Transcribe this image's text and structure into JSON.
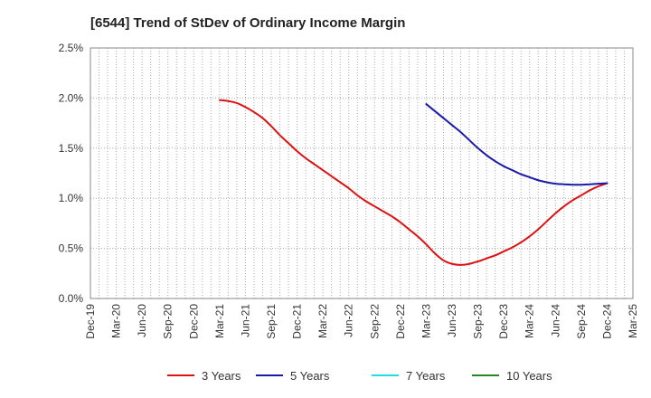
{
  "chart_data": {
    "type": "line",
    "title": "[6544]  Trend of StDev of Ordinary Income Margin",
    "xlabel": "",
    "ylabel": "",
    "x_ticks": [
      "Dec-19",
      "Mar-20",
      "Jun-20",
      "Sep-20",
      "Dec-20",
      "Mar-21",
      "Jun-21",
      "Sep-21",
      "Dec-21",
      "Mar-22",
      "Jun-22",
      "Sep-22",
      "Dec-22",
      "Mar-23",
      "Jun-23",
      "Sep-23",
      "Dec-23",
      "Mar-24",
      "Jun-24",
      "Sep-24",
      "Dec-24",
      "Mar-25"
    ],
    "y_ticks": [
      "0.0%",
      "0.5%",
      "1.0%",
      "1.5%",
      "2.0%",
      "2.5%"
    ],
    "ylim": [
      0,
      2.5
    ],
    "y_unit": "%",
    "grid": {
      "x": true,
      "y": true,
      "style": "dotted"
    },
    "legend_position": "bottom",
    "series": [
      {
        "name": "3 Years",
        "color": "#dd1111",
        "points": [
          [
            "Mar-21",
            1.98
          ],
          [
            "Apr-21",
            1.97
          ],
          [
            "May-21",
            1.95
          ],
          [
            "Jun-21",
            1.91
          ],
          [
            "Jul-21",
            1.86
          ],
          [
            "Aug-21",
            1.8
          ],
          [
            "Sep-21",
            1.72
          ],
          [
            "Oct-21",
            1.63
          ],
          [
            "Nov-21",
            1.55
          ],
          [
            "Dec-21",
            1.47
          ],
          [
            "Jan-22",
            1.4
          ],
          [
            "Feb-22",
            1.34
          ],
          [
            "Mar-22",
            1.28
          ],
          [
            "Apr-22",
            1.22
          ],
          [
            "May-22",
            1.16
          ],
          [
            "Jun-22",
            1.1
          ],
          [
            "Jul-22",
            1.03
          ],
          [
            "Aug-22",
            0.97
          ],
          [
            "Sep-22",
            0.92
          ],
          [
            "Oct-22",
            0.87
          ],
          [
            "Nov-22",
            0.82
          ],
          [
            "Dec-22",
            0.76
          ],
          [
            "Jan-23",
            0.69
          ],
          [
            "Feb-23",
            0.62
          ],
          [
            "Mar-23",
            0.54
          ],
          [
            "Apr-23",
            0.45
          ],
          [
            "May-23",
            0.38
          ],
          [
            "Jun-23",
            0.345
          ],
          [
            "Jul-23",
            0.335
          ],
          [
            "Aug-23",
            0.345
          ],
          [
            "Sep-23",
            0.37
          ],
          [
            "Oct-23",
            0.4
          ],
          [
            "Nov-23",
            0.43
          ],
          [
            "Dec-23",
            0.47
          ],
          [
            "Jan-24",
            0.51
          ],
          [
            "Feb-24",
            0.56
          ],
          [
            "Mar-24",
            0.62
          ],
          [
            "Apr-24",
            0.69
          ],
          [
            "May-24",
            0.77
          ],
          [
            "Jun-24",
            0.85
          ],
          [
            "Jul-24",
            0.92
          ],
          [
            "Aug-24",
            0.98
          ],
          [
            "Sep-24",
            1.03
          ],
          [
            "Oct-24",
            1.08
          ],
          [
            "Nov-24",
            1.12
          ],
          [
            "Dec-24",
            1.15
          ]
        ]
      },
      {
        "name": "5 Years",
        "color": "#1a1aaa",
        "points": [
          [
            "Mar-23",
            1.94
          ],
          [
            "Apr-23",
            1.87
          ],
          [
            "May-23",
            1.8
          ],
          [
            "Jun-23",
            1.73
          ],
          [
            "Jul-23",
            1.66
          ],
          [
            "Aug-23",
            1.58
          ],
          [
            "Sep-23",
            1.5
          ],
          [
            "Oct-23",
            1.43
          ],
          [
            "Nov-23",
            1.37
          ],
          [
            "Dec-23",
            1.32
          ],
          [
            "Jan-24",
            1.28
          ],
          [
            "Feb-24",
            1.24
          ],
          [
            "Mar-24",
            1.21
          ],
          [
            "Apr-24",
            1.18
          ],
          [
            "May-24",
            1.16
          ],
          [
            "Jun-24",
            1.145
          ],
          [
            "Jul-24",
            1.14
          ],
          [
            "Aug-24",
            1.135
          ],
          [
            "Sep-24",
            1.135
          ],
          [
            "Oct-24",
            1.14
          ],
          [
            "Nov-24",
            1.145
          ],
          [
            "Dec-24",
            1.15
          ]
        ]
      },
      {
        "name": "7 Years",
        "color": "#22dddd",
        "points": []
      },
      {
        "name": "10 Years",
        "color": "#228822",
        "points": []
      }
    ]
  }
}
